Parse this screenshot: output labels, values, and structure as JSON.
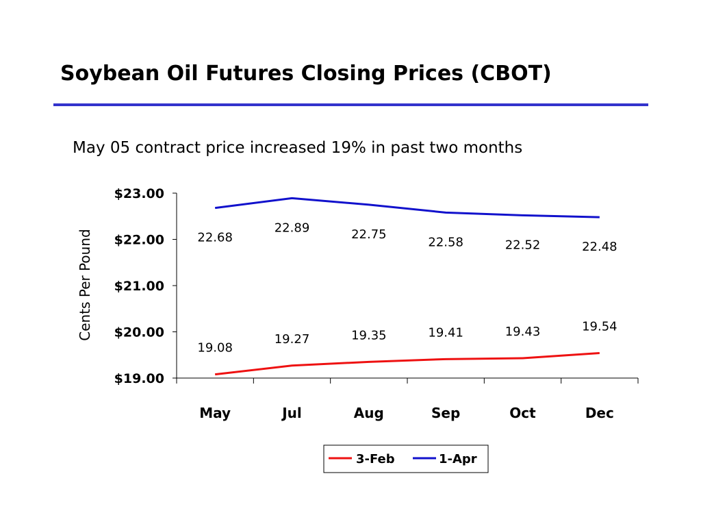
{
  "slide": {
    "title": "Soybean Oil Futures Closing Prices (CBOT)",
    "subtitle": "May 05 contract price increased 19% in past two months"
  },
  "chart_data": {
    "type": "line",
    "title": "",
    "xlabel": "",
    "ylabel": "Cents Per Pound",
    "categories": [
      "May",
      "Jul",
      "Aug",
      "Sep",
      "Oct",
      "Dec"
    ],
    "ylim": [
      19,
      23
    ],
    "yticks": [
      19,
      20,
      21,
      22,
      23
    ],
    "ytick_labels": [
      "$19.00",
      "$20.00",
      "$21.00",
      "$22.00",
      "$23.00"
    ],
    "grid": false,
    "legend_position": "bottom",
    "series": [
      {
        "name": "3-Feb",
        "color": "#ee1111",
        "values": [
          19.08,
          19.27,
          19.35,
          19.41,
          19.43,
          19.54
        ],
        "labels": [
          "19.08",
          "19.27",
          "19.35",
          "19.41",
          "19.43",
          "19.54"
        ]
      },
      {
        "name": "1-Apr",
        "color": "#1111cc",
        "values": [
          22.68,
          22.89,
          22.75,
          22.58,
          22.52,
          22.48
        ],
        "labels": [
          "22.68",
          "22.89",
          "22.75",
          "22.58",
          "22.52",
          "22.48"
        ]
      }
    ]
  }
}
